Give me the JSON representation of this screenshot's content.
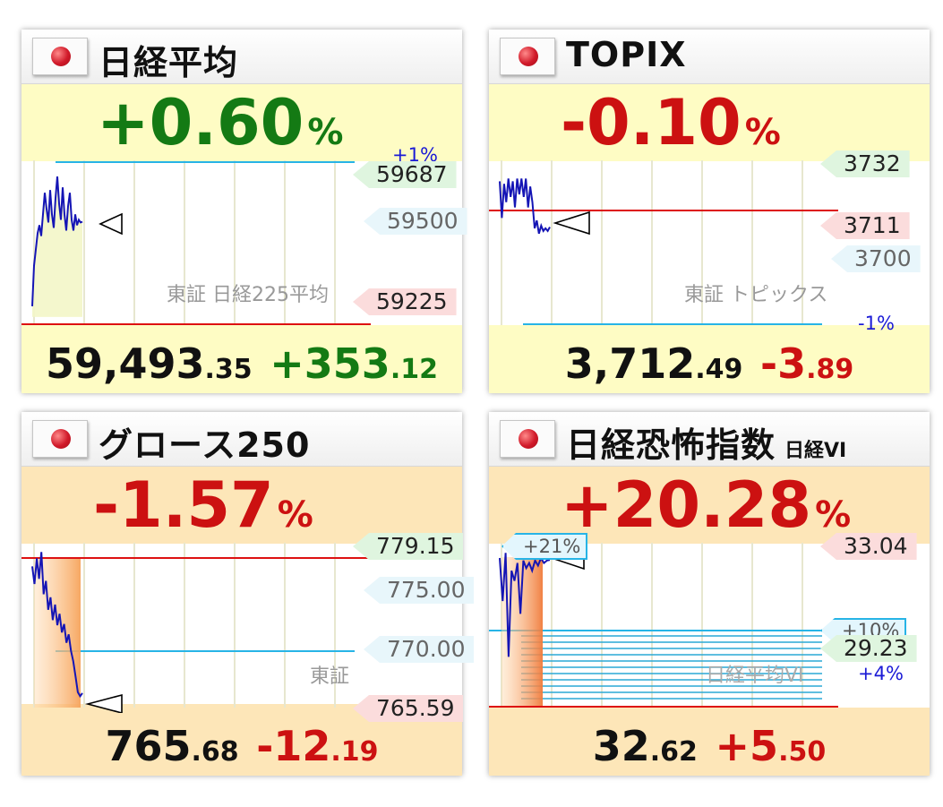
{
  "panels": [
    {
      "title": "日経平均",
      "subtitle": "",
      "pct": "+0.60",
      "pct_unit": "%",
      "direction": "up",
      "band_color": "#fefcc4",
      "price_main": "59,493",
      "price_dec": ".35",
      "chg_main": "+353",
      "chg_dec": ".12",
      "exchange_label": "東証 日経225平均",
      "labels": [
        {
          "text": "59687",
          "style": "green"
        },
        {
          "text": "59500",
          "style": "plain"
        },
        {
          "text": "59225",
          "style": "pink"
        }
      ],
      "pct_labels": [
        "+1%"
      ]
    },
    {
      "title": "TOPIX",
      "subtitle": "",
      "pct": "-0.10",
      "pct_unit": "%",
      "direction": "down",
      "band_color": "#fefcc4",
      "price_main": "3,712",
      "price_dec": ".49",
      "chg_main": "-3",
      "chg_dec": ".89",
      "exchange_label": "東証 トピックス",
      "labels": [
        {
          "text": "3732",
          "style": "green"
        },
        {
          "text": "3711",
          "style": "pink"
        },
        {
          "text": "3700",
          "style": "plain"
        }
      ],
      "pct_labels": [
        "-1%"
      ]
    },
    {
      "title": "グロース250",
      "subtitle": "",
      "pct": "-1.57",
      "pct_unit": "%",
      "direction": "down",
      "band_color": "#fde6b8",
      "price_main": "765",
      "price_dec": ".68",
      "chg_main": "-12",
      "chg_dec": ".19",
      "exchange_label": "東証",
      "labels": [
        {
          "text": "779.15",
          "style": "green"
        },
        {
          "text": "775.00",
          "style": "plain"
        },
        {
          "text": "770.00",
          "style": "plain"
        },
        {
          "text": "765.59",
          "style": "pink"
        }
      ],
      "pct_labels": []
    },
    {
      "title": "日経恐怖指数",
      "subtitle": "日経VI",
      "pct": "+20.28",
      "pct_unit": "%",
      "direction": "up_red",
      "band_color": "#fde6b8",
      "price_main": "32",
      "price_dec": ".62",
      "chg_main": "+5",
      "chg_dec": ".50",
      "exchange_label": "日経平均VI",
      "labels": [
        {
          "text": "33.04",
          "style": "pink"
        },
        {
          "text": "29.23",
          "style": "green"
        }
      ],
      "pct_labels": [
        "+21%",
        "+10%",
        "+4%"
      ]
    }
  ],
  "chart_data": [
    {
      "type": "line",
      "title": "日経平均",
      "xlabel": "",
      "ylabel": "",
      "reference_lines": {
        "plus_1pct": 59687,
        "prev_close": 59140.23
      },
      "y_ticks": [
        59687,
        59500,
        59225
      ],
      "ylim": [
        59110,
        59720
      ],
      "series": [
        {
          "values": [
            59180,
            59330,
            59390,
            59450,
            59480,
            59440,
            59520,
            59600,
            59540,
            59490,
            59610,
            59520,
            59470,
            59580,
            59660,
            59560,
            59500,
            59620,
            59520,
            59460,
            59550,
            59600,
            59500,
            59460,
            59520,
            59480,
            59500,
            59490,
            59493
          ]
        }
      ]
    },
    {
      "type": "line",
      "title": "TOPIX",
      "xlabel": "",
      "ylabel": "",
      "reference_lines": {
        "prev_close": 3716.38,
        "minus_1pct": 3679.2
      },
      "y_ticks": [
        3732,
        3711,
        3700
      ],
      "ylim": [
        3675,
        3738
      ],
      "series": [
        {
          "values": [
            3730,
            3716,
            3729,
            3722,
            3731,
            3724,
            3730,
            3720,
            3731,
            3725,
            3731,
            3724,
            3731,
            3720,
            3728,
            3722,
            3712,
            3715,
            3710,
            3713,
            3711,
            3712,
            3711,
            3712.5
          ]
        }
      ]
    },
    {
      "type": "area",
      "title": "グロース250",
      "xlabel": "",
      "ylabel": "",
      "reference_lines": {
        "prev_close": 777.87,
        "current": 770.0
      },
      "y_ticks": [
        779.15,
        775.0,
        770.0,
        765.59
      ],
      "ylim": [
        764.5,
        780.5
      ],
      "series": [
        {
          "values": [
            778.2,
            776.5,
            779.0,
            777.0,
            779.6,
            775.5,
            776.8,
            774.0,
            775.2,
            773.0,
            774.5,
            772.5,
            773.6,
            771.8,
            772.6,
            770.8,
            771.6,
            770.0,
            769.0,
            767.5,
            766.0,
            765.6,
            765.9
          ]
        }
      ]
    },
    {
      "type": "line",
      "title": "日経恐怖指数",
      "xlabel": "",
      "ylabel": "",
      "reference_lines": {
        "plus_21pct": 33.0,
        "plus_10pct": 29.95,
        "prev_close": 27.12
      },
      "y_ticks": [
        33.04,
        29.23
      ],
      "ylim": [
        26.8,
        33.3
      ],
      "series": [
        {
          "values": [
            32.7,
            31.0,
            32.9,
            28.8,
            32.2,
            31.8,
            32.5,
            30.5,
            32.6,
            32.3,
            32.5,
            32.2,
            32.6,
            32.4,
            32.7,
            32.5,
            32.6,
            32.62
          ]
        }
      ]
    }
  ]
}
